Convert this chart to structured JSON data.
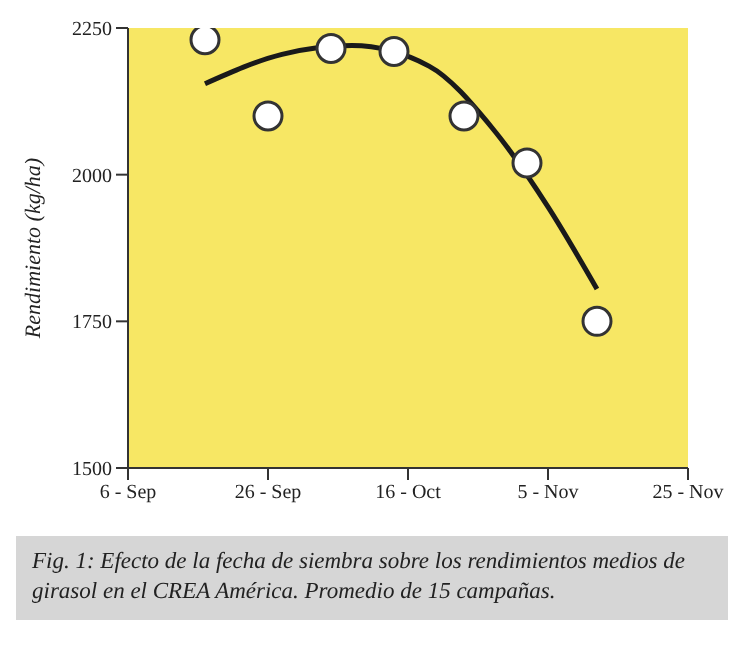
{
  "chart_data": {
    "type": "scatter",
    "ylabel": "Rendimiento (kg/ha)",
    "xlim": [
      "--09-06",
      "--11-25"
    ],
    "xticks": [
      {
        "value": "--09-06",
        "label": "6 - Sep"
      },
      {
        "value": "--09-26",
        "label": "26 - Sep"
      },
      {
        "value": "--10-16",
        "label": "16 - Oct"
      },
      {
        "value": "--11-05",
        "label": "5 - Nov"
      },
      {
        "value": "--11-25",
        "label": "25 - Nov"
      }
    ],
    "ylim": [
      1500,
      2250
    ],
    "yticks": [
      1500,
      1750,
      2000,
      2250
    ],
    "marker": "circle",
    "series": [
      {
        "color": "#ffffff",
        "x": [
          "--09-17",
          "--09-26",
          "--10-05",
          "--10-14",
          "--10-24",
          "--11-02",
          "--11-12"
        ],
        "values": [
          2230,
          2100,
          2215,
          2210,
          2100,
          2020,
          1750
        ]
      },
      {
        "type": "line",
        "color": "#1a1a1a",
        "marker": "none",
        "line_style": "solid",
        "x": [
          "--09-17",
          "--09-28",
          "--10-08",
          "--10-19",
          "--10-28",
          "--11-05",
          "--11-12"
        ],
        "values": [
          2155,
          2205,
          2220,
          2185,
          2080,
          1945,
          1805
        ]
      }
    ],
    "annotations": [
      "Fig. 1: Efecto de la fecha de siembra sobre los rendimientos medios de girasol en el CREA América. Promedio de 15 campañas."
    ]
  }
}
